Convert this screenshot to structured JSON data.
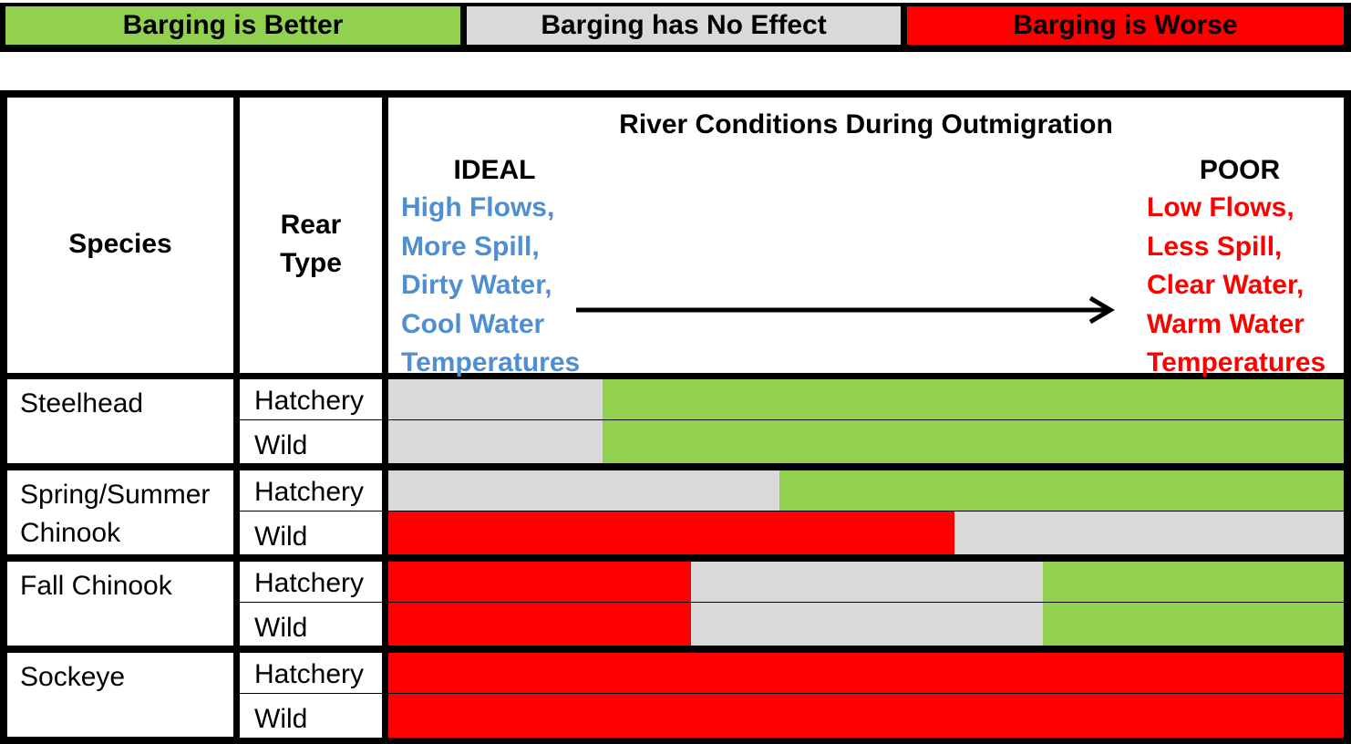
{
  "colors": {
    "better": "#92d050",
    "no_effect": "#d9d9d9",
    "worse": "#ff0000",
    "ideal_text": "#4f8fd1",
    "poor_text": "#ff0000"
  },
  "legend": [
    {
      "label": "Barging is Better",
      "color": "#92d050"
    },
    {
      "label": "Barging has No Effect",
      "color": "#d9d9d9"
    },
    {
      "label": "Barging is Worse",
      "color": "#ff0000"
    }
  ],
  "header": {
    "species": "Species",
    "rear_type_line1": "Rear",
    "rear_type_line2": "Type",
    "conditions_title": "River Conditions During Outmigration",
    "ideal": {
      "label": "IDEAL",
      "lines": [
        "High Flows,",
        "More Spill,",
        "Dirty Water,",
        "Cool Water",
        "Temperatures"
      ]
    },
    "poor": {
      "label": "POOR",
      "lines": [
        "Low Flows,",
        "Less Spill,",
        "Clear Water,",
        "Warm Water",
        "Temperatures"
      ]
    }
  },
  "rows": [
    {
      "species_lines": [
        "Steelhead"
      ],
      "rears": [
        {
          "label": "Hatchery",
          "segments": [
            {
              "effect": "no_effect",
              "share": 0.224
            },
            {
              "effect": "better",
              "share": 0.776
            }
          ]
        },
        {
          "label": "Wild",
          "segments": [
            {
              "effect": "no_effect",
              "share": 0.224
            },
            {
              "effect": "better",
              "share": 0.776
            }
          ]
        }
      ]
    },
    {
      "species_lines": [
        "Spring/Summer",
        "Chinook"
      ],
      "rears": [
        {
          "label": "Hatchery",
          "segments": [
            {
              "effect": "no_effect",
              "share": 0.409
            },
            {
              "effect": "better",
              "share": 0.591
            }
          ]
        },
        {
          "label": "Wild",
          "segments": [
            {
              "effect": "worse",
              "share": 0.593
            },
            {
              "effect": "no_effect",
              "share": 0.407
            }
          ]
        }
      ]
    },
    {
      "species_lines": [
        "Fall Chinook"
      ],
      "rears": [
        {
          "label": "Hatchery",
          "segments": [
            {
              "effect": "worse",
              "share": 0.317
            },
            {
              "effect": "no_effect",
              "share": 0.368
            },
            {
              "effect": "better",
              "share": 0.315
            }
          ]
        },
        {
          "label": "Wild",
          "segments": [
            {
              "effect": "worse",
              "share": 0.317
            },
            {
              "effect": "no_effect",
              "share": 0.368
            },
            {
              "effect": "better",
              "share": 0.315
            }
          ]
        }
      ]
    },
    {
      "species_lines": [
        "Sockeye"
      ],
      "rears": [
        {
          "label": "Hatchery",
          "segments": [
            {
              "effect": "worse",
              "share": 1.0
            }
          ]
        },
        {
          "label": "Wild",
          "segments": [
            {
              "effect": "worse",
              "share": 1.0
            }
          ]
        }
      ]
    }
  ]
}
